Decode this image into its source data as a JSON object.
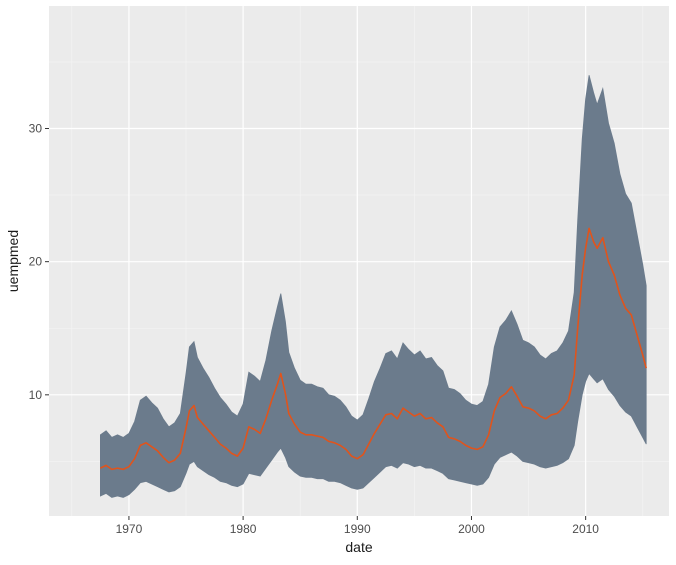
{
  "chart_data": {
    "type": "area",
    "title": "",
    "xlabel": "date",
    "ylabel": "uempmed",
    "xlim": [
      1963,
      2017.3
    ],
    "ylim": [
      0.9,
      39.2
    ],
    "x_ticks": [
      1970,
      1980,
      1990,
      2000,
      2010
    ],
    "x_tick_labels": [
      "1970",
      "1980",
      "1990",
      "2000",
      "2010"
    ],
    "y_ticks": [
      10,
      20,
      30
    ],
    "y_tick_labels": [
      "10",
      "20",
      "30"
    ],
    "grid": true,
    "colors": {
      "panel": "#ebebeb",
      "grid_major": "#ffffff",
      "band": "#6b7b8c",
      "line": "#e0541c"
    },
    "series": [
      {
        "name": "uempmed",
        "x": [
          1967.5,
          1968,
          1968.5,
          1969,
          1969.5,
          1970,
          1970.5,
          1971,
          1971.5,
          1972,
          1972.5,
          1973,
          1973.5,
          1974,
          1974.5,
          1975,
          1975.3,
          1975.7,
          1976,
          1976.5,
          1977,
          1977.5,
          1978,
          1978.5,
          1979,
          1979.5,
          1980,
          1980.5,
          1981,
          1981.5,
          1982,
          1982.5,
          1983,
          1983.3,
          1983.7,
          1984,
          1984.5,
          1985,
          1985.5,
          1986,
          1986.5,
          1987,
          1987.5,
          1988,
          1988.5,
          1989,
          1989.5,
          1990,
          1990.5,
          1991,
          1991.5,
          1992,
          1992.5,
          1993,
          1993.5,
          1994,
          1994.5,
          1995,
          1995.5,
          1996,
          1996.5,
          1997,
          1997.5,
          1998,
          1998.5,
          1999,
          1999.5,
          2000,
          2000.5,
          2001,
          2001.5,
          2002,
          2002.5,
          2003,
          2003.5,
          2004,
          2004.5,
          2005,
          2005.5,
          2006,
          2006.5,
          2007,
          2007.5,
          2008,
          2008.5,
          2009,
          2009.3,
          2009.7,
          2010,
          2010.3,
          2010.7,
          2011,
          2011.5,
          2012,
          2012.5,
          2013,
          2013.5,
          2014,
          2014.5,
          2015,
          2015.3
        ],
        "values": [
          4.5,
          4.7,
          4.4,
          4.5,
          4.4,
          4.6,
          5.2,
          6.2,
          6.4,
          6.1,
          5.8,
          5.3,
          4.9,
          5.1,
          5.6,
          7.5,
          8.8,
          9.2,
          8.3,
          7.8,
          7.3,
          6.8,
          6.3,
          6.0,
          5.6,
          5.4,
          6.0,
          7.6,
          7.4,
          7.1,
          8.2,
          9.6,
          10.8,
          11.6,
          10.1,
          8.6,
          7.8,
          7.2,
          7.0,
          7.0,
          6.9,
          6.8,
          6.5,
          6.4,
          6.2,
          5.9,
          5.4,
          5.2,
          5.5,
          6.3,
          7.1,
          7.8,
          8.5,
          8.6,
          8.2,
          9.0,
          8.7,
          8.4,
          8.6,
          8.2,
          8.3,
          7.9,
          7.6,
          6.8,
          6.7,
          6.5,
          6.2,
          6.0,
          5.9,
          6.1,
          7.0,
          8.8,
          9.8,
          10.1,
          10.6,
          9.9,
          9.1,
          9.0,
          8.8,
          8.4,
          8.2,
          8.5,
          8.6,
          9.0,
          9.6,
          11.5,
          15.0,
          19.0,
          21.0,
          22.5,
          21.5,
          21.0,
          21.8,
          20.0,
          19.0,
          17.5,
          16.5,
          16.0,
          14.5,
          13.0,
          12.0
        ],
        "band_low": [
          2.4,
          2.6,
          2.3,
          2.4,
          2.3,
          2.5,
          2.9,
          3.4,
          3.5,
          3.3,
          3.1,
          2.9,
          2.7,
          2.8,
          3.1,
          4.1,
          4.8,
          5.0,
          4.6,
          4.3,
          4.0,
          3.8,
          3.5,
          3.4,
          3.2,
          3.1,
          3.3,
          4.1,
          4.0,
          3.9,
          4.5,
          5.1,
          5.7,
          6.0,
          5.3,
          4.6,
          4.2,
          3.9,
          3.8,
          3.8,
          3.7,
          3.7,
          3.5,
          3.5,
          3.4,
          3.2,
          3.0,
          2.9,
          3.0,
          3.4,
          3.8,
          4.2,
          4.6,
          4.7,
          4.5,
          4.9,
          4.8,
          4.6,
          4.7,
          4.5,
          4.5,
          4.3,
          4.1,
          3.7,
          3.6,
          3.5,
          3.4,
          3.3,
          3.2,
          3.3,
          3.8,
          4.8,
          5.3,
          5.5,
          5.7,
          5.4,
          5.0,
          4.9,
          4.8,
          4.6,
          4.5,
          4.6,
          4.7,
          4.9,
          5.2,
          6.2,
          8.0,
          10.0,
          11.0,
          11.6,
          11.2,
          10.9,
          11.2,
          10.4,
          9.9,
          9.2,
          8.7,
          8.4,
          7.6,
          6.8,
          6.3
        ],
        "band_high": [
          7.0,
          7.3,
          6.8,
          7.0,
          6.8,
          7.1,
          8.0,
          9.6,
          9.9,
          9.4,
          9.0,
          8.2,
          7.6,
          7.9,
          8.6,
          11.6,
          13.6,
          14.0,
          12.8,
          12.0,
          11.3,
          10.5,
          9.8,
          9.3,
          8.7,
          8.4,
          9.3,
          11.7,
          11.4,
          11.0,
          12.6,
          14.8,
          16.6,
          17.6,
          15.5,
          13.2,
          12.0,
          11.1,
          10.8,
          10.8,
          10.6,
          10.5,
          10.0,
          9.9,
          9.6,
          9.1,
          8.4,
          8.1,
          8.5,
          9.7,
          11.0,
          12.0,
          13.1,
          13.3,
          12.7,
          13.9,
          13.4,
          13.0,
          13.3,
          12.7,
          12.8,
          12.2,
          11.8,
          10.5,
          10.4,
          10.1,
          9.6,
          9.3,
          9.2,
          9.5,
          10.8,
          13.6,
          15.1,
          15.6,
          16.3,
          15.3,
          14.1,
          13.9,
          13.6,
          13.0,
          12.7,
          13.1,
          13.3,
          13.9,
          14.8,
          17.7,
          23.1,
          29.2,
          32.2,
          34.0,
          32.7,
          31.8,
          33.0,
          30.4,
          28.9,
          26.6,
          25.1,
          24.4,
          22.1,
          19.8,
          18.2
        ]
      }
    ]
  }
}
